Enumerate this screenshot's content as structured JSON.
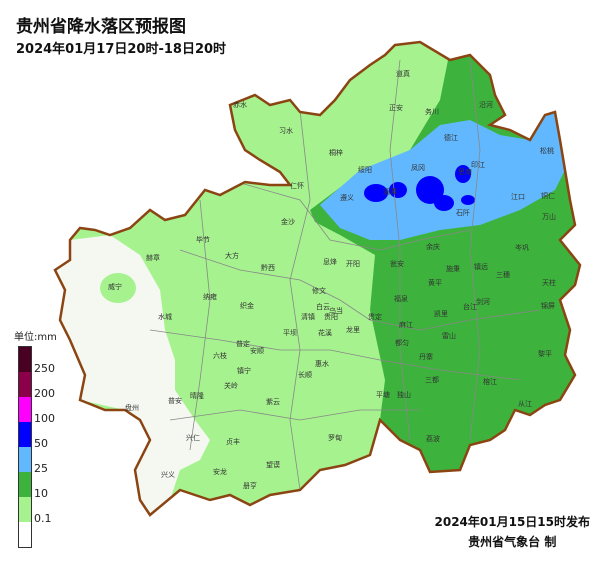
{
  "header": {
    "title": "贵州省降水落区预报图",
    "subtitle": "2024年01月17日20时-18日20时"
  },
  "legend": {
    "unit": "单位:mm",
    "bins": [
      {
        "color": "#4a0022"
      },
      {
        "color": "#8b0048"
      },
      {
        "color": "#ff00ff"
      },
      {
        "color": "#0000ff"
      },
      {
        "color": "#61b8ff"
      },
      {
        "color": "#3db33d"
      },
      {
        "color": "#a6f28f"
      },
      {
        "color": "#ffffff"
      }
    ],
    "ticks": [
      "250",
      "200",
      "100",
      "50",
      "25",
      "10",
      "0.1"
    ]
  },
  "map": {
    "colors": {
      "outline": "#8b4513",
      "county_border": "#777777",
      "none": "#f5f8f0",
      "light": "#a6f28f",
      "moderate": "#3db33d",
      "heavy": "#61b8ff",
      "storm": "#0000ff"
    },
    "places": [
      "道真",
      "赤水",
      "正安",
      "务川",
      "沿河",
      "习水",
      "桐梓",
      "德江",
      "松桃",
      "绥阳",
      "印江",
      "凤冈",
      "思南",
      "仁怀",
      "遵义",
      "湄潭",
      "石阡",
      "江口",
      "铜仁",
      "万山",
      "金沙",
      "毕节",
      "赫章",
      "大方",
      "威宁",
      "纳雍",
      "织金",
      "黔西",
      "息烽",
      "开阳",
      "修文",
      "白云",
      "乌当",
      "清镇",
      "贵阳",
      "平坝",
      "花溪",
      "龙里",
      "贵定",
      "瓮安",
      "福泉",
      "麻江",
      "都匀",
      "惠水",
      "长顺",
      "平塘",
      "独山",
      "三都",
      "余庆",
      "施秉",
      "镇远",
      "岑巩",
      "黄平",
      "三穗",
      "天柱",
      "凯里",
      "台江",
      "剑河",
      "锦屏",
      "雷山",
      "丹寨",
      "黎平",
      "榕江",
      "从江",
      "荔波",
      "普定",
      "六枝",
      "安顺",
      "镇宁",
      "紫云",
      "关岭",
      "盘州",
      "普安",
      "晴隆",
      "兴仁",
      "贞丰",
      "望谟",
      "罗甸",
      "兴义",
      "安龙",
      "册亨",
      "水城"
    ]
  },
  "footer": {
    "issued": "2024年01月15日15时发布",
    "issuer": "贵州省气象台 制"
  }
}
